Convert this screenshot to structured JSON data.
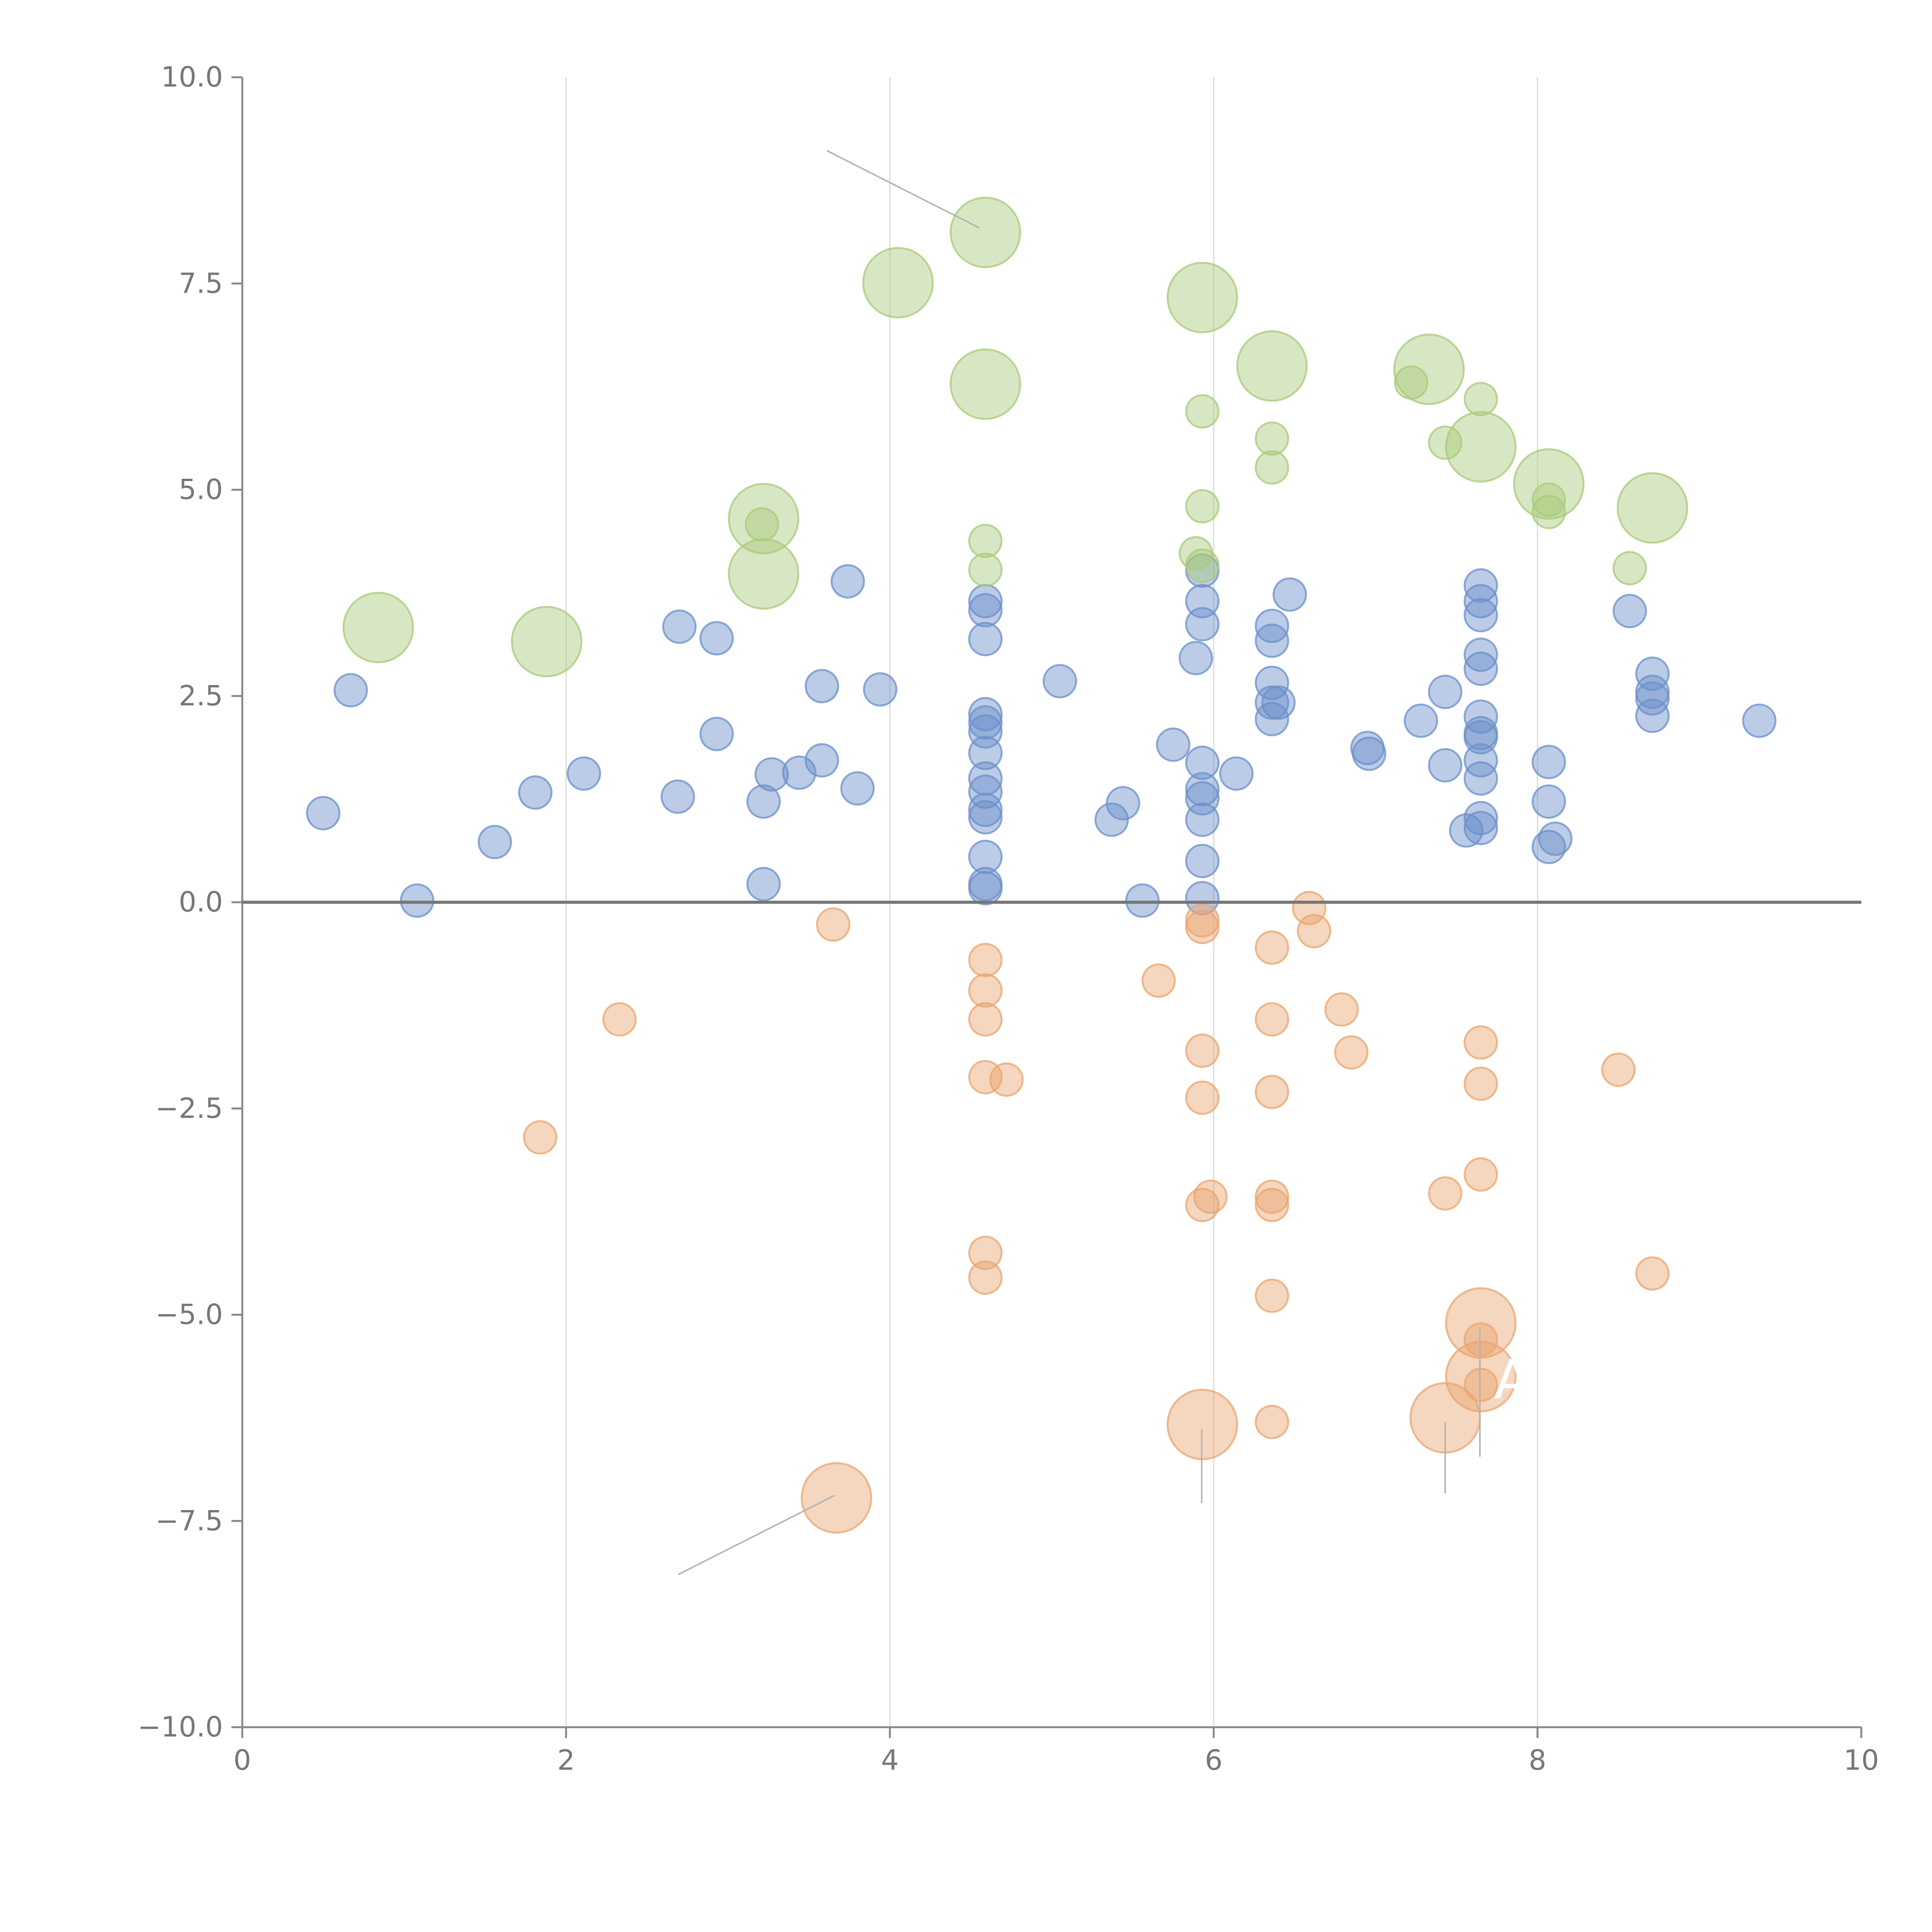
{
  "chart_data": {
    "type": "scatter",
    "title": "",
    "xlabel": "",
    "ylabel": "",
    "xlim": [
      0,
      10
    ],
    "ylim": [
      -10,
      10
    ],
    "x_ticks": [
      0,
      2,
      4,
      6,
      8,
      10
    ],
    "x_tick_labels": [
      "0",
      "2",
      "4",
      "6",
      "8",
      "10"
    ],
    "y_ticks": [
      10,
      7.5,
      5,
      2.5,
      0,
      -2.5,
      -5,
      -7.5,
      -10
    ],
    "y_tick_labels": [
      "10.0",
      "7.5",
      "5.0",
      "2.5",
      "0.0",
      "−2.5",
      "−5.0",
      "−7.5",
      "−10.0"
    ],
    "vertical_gridlines_at": [
      2,
      4,
      6,
      8
    ],
    "zero_line": true,
    "colors": {
      "positive": "#6b8fc9",
      "negative": "#e8a56f",
      "highlight": "#a9c97a",
      "axis": "#888888",
      "zero_line": "#777777",
      "grid": "#d9d9d9",
      "leader": "#b5b5b5"
    },
    "series": [
      {
        "name": "positive",
        "color": "#6b8fc9",
        "points": [
          [
            0.5,
            1.08
          ],
          [
            0.67,
            2.57
          ],
          [
            1.08,
            0.02
          ],
          [
            1.56,
            0.73
          ],
          [
            1.81,
            1.33
          ],
          [
            2.11,
            1.56
          ],
          [
            2.69,
            1.28
          ],
          [
            2.7,
            3.34
          ],
          [
            2.93,
            3.2
          ],
          [
            2.93,
            2.04
          ],
          [
            3.22,
            1.22
          ],
          [
            3.22,
            0.22
          ],
          [
            3.27,
            1.55
          ],
          [
            3.44,
            1.57
          ],
          [
            3.58,
            1.72
          ],
          [
            3.58,
            2.62
          ],
          [
            3.74,
            3.89
          ],
          [
            3.8,
            1.38
          ],
          [
            3.94,
            2.58
          ],
          [
            4.59,
            3.65
          ],
          [
            4.59,
            3.54
          ],
          [
            4.59,
            3.19
          ],
          [
            4.59,
            2.28
          ],
          [
            4.59,
            2.18
          ],
          [
            4.59,
            2.07
          ],
          [
            4.59,
            1.81
          ],
          [
            4.59,
            1.5
          ],
          [
            4.59,
            1.34
          ],
          [
            4.59,
            1.12
          ],
          [
            4.59,
            1.03
          ],
          [
            4.59,
            0.55
          ],
          [
            4.59,
            0.22
          ],
          [
            4.59,
            0.17
          ],
          [
            5.05,
            2.68
          ],
          [
            5.37,
            1.0
          ],
          [
            5.44,
            1.2
          ],
          [
            5.56,
            0.02
          ],
          [
            5.75,
            1.91
          ],
          [
            5.89,
            2.96
          ],
          [
            5.93,
            4.02
          ],
          [
            5.93,
            3.65
          ],
          [
            5.93,
            3.37
          ],
          [
            5.93,
            1.69
          ],
          [
            5.93,
            1.37
          ],
          [
            5.93,
            1.26
          ],
          [
            5.93,
            1.0
          ],
          [
            5.93,
            0.5
          ],
          [
            5.93,
            0.05
          ],
          [
            6.14,
            1.56
          ],
          [
            6.36,
            3.35
          ],
          [
            6.36,
            3.17
          ],
          [
            6.36,
            2.66
          ],
          [
            6.36,
            2.42
          ],
          [
            6.36,
            2.22
          ],
          [
            6.4,
            2.42
          ],
          [
            6.47,
            3.73
          ],
          [
            6.95,
            1.87
          ],
          [
            6.96,
            1.8
          ],
          [
            7.28,
            2.2
          ],
          [
            7.43,
            1.66
          ],
          [
            7.43,
            2.55
          ],
          [
            7.56,
            0.87
          ],
          [
            7.65,
            3.84
          ],
          [
            7.65,
            3.65
          ],
          [
            7.65,
            3.48
          ],
          [
            7.65,
            3.0
          ],
          [
            7.65,
            2.83
          ],
          [
            7.65,
            2.25
          ],
          [
            7.65,
            2.05
          ],
          [
            7.65,
            2.0
          ],
          [
            7.65,
            1.72
          ],
          [
            7.65,
            1.5
          ],
          [
            7.65,
            1.02
          ],
          [
            7.65,
            0.9
          ],
          [
            8.07,
            1.7
          ],
          [
            8.07,
            1.22
          ],
          [
            8.07,
            0.67
          ],
          [
            8.11,
            0.77
          ],
          [
            8.57,
            3.53
          ],
          [
            8.71,
            2.77
          ],
          [
            8.71,
            2.55
          ],
          [
            8.71,
            2.47
          ],
          [
            8.71,
            2.26
          ],
          [
            9.37,
            2.2
          ]
        ]
      },
      {
        "name": "negative",
        "color": "#e8a56f",
        "points": [
          [
            1.84,
            -2.85
          ],
          [
            2.33,
            -1.42
          ],
          [
            3.65,
            -0.27
          ],
          [
            4.59,
            -0.7
          ],
          [
            4.59,
            -1.07
          ],
          [
            4.59,
            -1.42
          ],
          [
            4.59,
            -2.12
          ],
          [
            4.72,
            -2.15
          ],
          [
            4.59,
            -4.25
          ],
          [
            4.59,
            -4.55
          ],
          [
            5.66,
            -0.95
          ],
          [
            5.93,
            -0.22
          ],
          [
            5.93,
            -0.3
          ],
          [
            5.93,
            -1.8
          ],
          [
            5.93,
            -2.37
          ],
          [
            5.93,
            -3.67
          ],
          [
            5.98,
            -3.57
          ],
          [
            6.36,
            -0.55
          ],
          [
            6.36,
            -1.42
          ],
          [
            6.36,
            -2.3
          ],
          [
            6.36,
            -3.57
          ],
          [
            6.36,
            -3.67
          ],
          [
            6.36,
            -4.77
          ],
          [
            6.36,
            -6.3
          ],
          [
            6.59,
            -0.07
          ],
          [
            6.62,
            -0.35
          ],
          [
            6.79,
            -1.3
          ],
          [
            6.85,
            -1.82
          ],
          [
            7.43,
            -3.53
          ],
          [
            7.65,
            -1.7
          ],
          [
            7.65,
            -2.2
          ],
          [
            7.65,
            -3.3
          ],
          [
            7.65,
            -5.3
          ],
          [
            7.65,
            -5.85
          ],
          [
            8.5,
            -2.03
          ],
          [
            8.71,
            -4.5
          ]
        ]
      },
      {
        "name": "highlight",
        "color": "#a9c97a",
        "points": [
          [
            3.21,
            4.58
          ],
          [
            4.59,
            4.38
          ],
          [
            4.59,
            4.03
          ],
          [
            5.89,
            4.23
          ],
          [
            5.93,
            4.08
          ],
          [
            5.93,
            4.8
          ],
          [
            5.93,
            5.95
          ],
          [
            6.36,
            5.62
          ],
          [
            6.36,
            5.27
          ],
          [
            7.22,
            6.3
          ],
          [
            7.43,
            5.57
          ],
          [
            7.65,
            6.1
          ],
          [
            8.07,
            4.88
          ],
          [
            8.07,
            4.73
          ],
          [
            8.57,
            4.05
          ]
        ]
      }
    ],
    "labeled_points": [
      {
        "label": "",
        "x": 0.84,
        "y": 3.33,
        "group": "highlight"
      },
      {
        "label": "",
        "x": 1.88,
        "y": 3.16,
        "group": "highlight"
      },
      {
        "label": "",
        "x": 3.22,
        "y": 4.65,
        "group": "highlight"
      },
      {
        "label": "",
        "x": 3.22,
        "y": 3.98,
        "group": "highlight"
      },
      {
        "label": "",
        "x": 4.05,
        "y": 7.51,
        "group": "highlight"
      },
      {
        "label": "",
        "x": 4.59,
        "y": 8.12,
        "group": "highlight"
      },
      {
        "label": "",
        "x": 4.59,
        "y": 6.28,
        "group": "highlight"
      },
      {
        "label": "",
        "x": 5.93,
        "y": 7.33,
        "group": "highlight"
      },
      {
        "label": "",
        "x": 6.36,
        "y": 6.5,
        "group": "highlight"
      },
      {
        "label": "",
        "x": 7.33,
        "y": 6.46,
        "group": "highlight"
      },
      {
        "label": "",
        "x": 7.65,
        "y": 5.52,
        "group": "highlight"
      },
      {
        "label": "",
        "x": 8.07,
        "y": 5.07,
        "group": "highlight"
      },
      {
        "label": "",
        "x": 8.71,
        "y": 4.78,
        "group": "highlight"
      },
      {
        "label": "",
        "x": 3.67,
        "y": -7.22,
        "group": "negative"
      },
      {
        "label": "",
        "x": 5.93,
        "y": -6.33,
        "group": "negative"
      },
      {
        "label": "",
        "x": 7.43,
        "y": -6.25,
        "group": "negative"
      },
      {
        "label": "A",
        "x": 7.65,
        "y": -5.1,
        "group": "negative"
      },
      {
        "label": "",
        "x": 7.65,
        "y": -5.75,
        "group": "negative"
      }
    ],
    "annotation_text": [
      {
        "text": "A",
        "x": 7.78,
        "y": -5.85
      }
    ]
  }
}
